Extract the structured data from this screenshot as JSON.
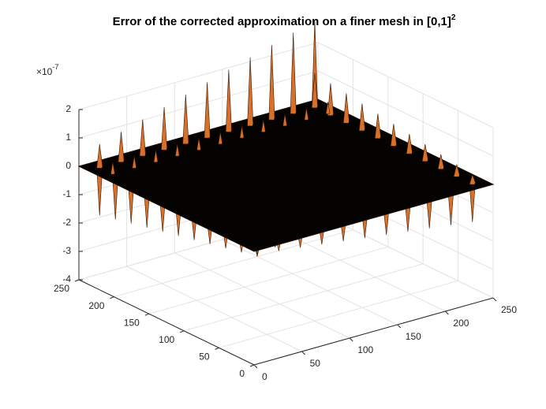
{
  "chart_data": {
    "type": "surface",
    "title": "Error of the corrected approximation on a finer mesh in [0,1]",
    "title_superscript": "2",
    "z_multiplier": {
      "base": "×10",
      "exponent": "-7"
    },
    "xlim": [
      0,
      250
    ],
    "xticks": [
      0,
      50,
      100,
      150,
      200,
      250
    ],
    "ylim": [
      0,
      250
    ],
    "yticks": [
      0,
      50,
      100,
      150,
      200,
      250
    ],
    "zlim": [
      -4,
      2
    ],
    "zticks": [
      -4,
      -3,
      -2,
      -1,
      0,
      1,
      2
    ],
    "grid": true,
    "color": "#d9702a"
  }
}
